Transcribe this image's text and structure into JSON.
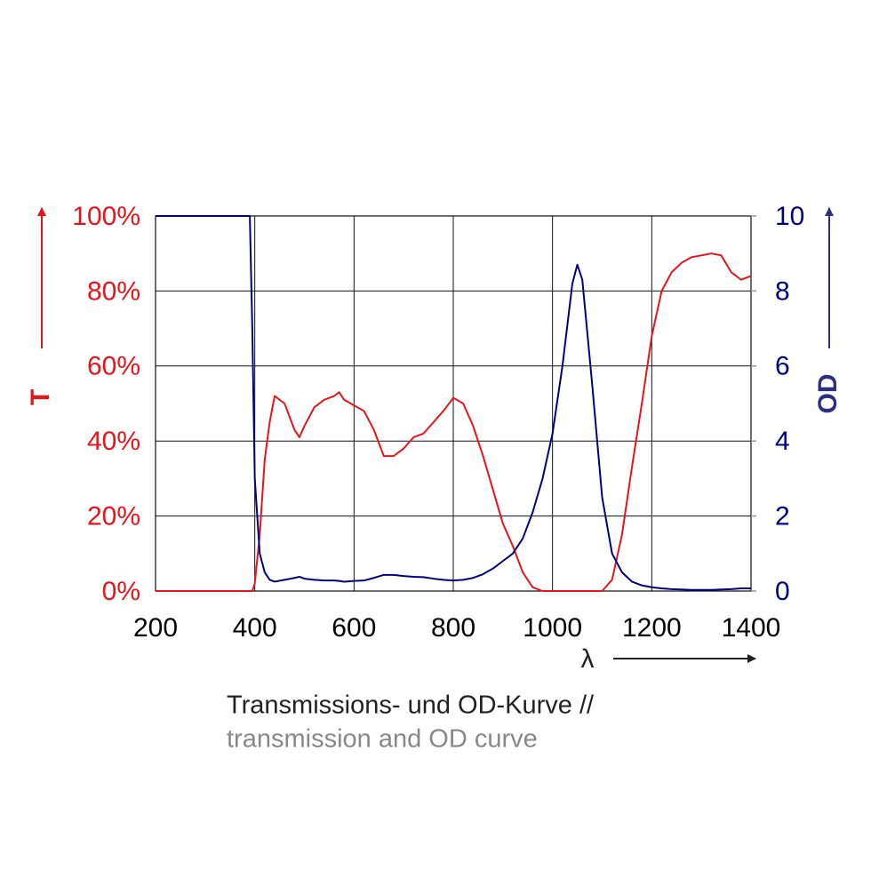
{
  "chart_data": {
    "type": "line",
    "y_label": "T",
    "y2_label": "OD",
    "x_label": "λ",
    "caption": [
      "Transmissions- und OD-Kurve //",
      "transmission and OD curve"
    ],
    "xlim": [
      200,
      1400
    ],
    "xticks": [
      200,
      400,
      600,
      800,
      1000,
      1200,
      1400
    ],
    "ylim": [
      0,
      100
    ],
    "yticks": [
      {
        "value": 0,
        "label": "0%"
      },
      {
        "value": 20,
        "label": "20%"
      },
      {
        "value": 40,
        "label": "40%"
      },
      {
        "value": 60,
        "label": "60%"
      },
      {
        "value": 80,
        "label": "80%"
      },
      {
        "value": 100,
        "label": "100%"
      }
    ],
    "y2lim": [
      0,
      10
    ],
    "y2ticks": [
      0,
      2,
      4,
      6,
      8,
      10
    ],
    "grid": true,
    "x": [
      200,
      300,
      380,
      390,
      395,
      400,
      410,
      420,
      430,
      440,
      460,
      480,
      490,
      500,
      520,
      540,
      560,
      570,
      580,
      600,
      620,
      640,
      660,
      680,
      700,
      720,
      740,
      760,
      780,
      800,
      820,
      840,
      860,
      880,
      900,
      920,
      940,
      960,
      980,
      1000,
      1020,
      1040,
      1050,
      1060,
      1080,
      1100,
      1120,
      1140,
      1160,
      1180,
      1200,
      1220,
      1240,
      1260,
      1280,
      1300,
      1320,
      1340,
      1360,
      1380,
      1400
    ],
    "series": [
      {
        "color": "#e8141b",
        "axis": "y",
        "values": [
          0,
          0,
          0,
          0,
          0,
          2,
          15,
          35,
          45,
          52,
          50,
          43,
          41,
          44,
          49,
          51,
          52,
          53,
          51,
          49.5,
          48,
          43,
          36,
          36,
          38,
          41,
          42,
          45,
          48,
          51.5,
          50,
          44,
          36,
          27,
          18,
          12,
          5,
          1,
          0,
          0,
          0,
          0,
          0,
          0,
          0,
          0,
          3,
          15,
          33,
          50,
          68,
          80,
          85,
          87.5,
          89,
          89.5,
          90,
          89.5,
          85,
          83,
          84
        ]
      },
      {
        "color": "#000080",
        "axis": "y2",
        "values": [
          10,
          10,
          10,
          10,
          7,
          3,
          1,
          0.5,
          0.3,
          0.25,
          0.3,
          0.35,
          0.38,
          0.33,
          0.3,
          0.28,
          0.28,
          0.27,
          0.25,
          0.27,
          0.28,
          0.35,
          0.43,
          0.43,
          0.4,
          0.38,
          0.37,
          0.33,
          0.3,
          0.28,
          0.3,
          0.35,
          0.45,
          0.6,
          0.8,
          1.0,
          1.4,
          2.1,
          3.0,
          4.2,
          6.0,
          8.2,
          8.7,
          8.3,
          5.5,
          2.5,
          1.0,
          0.5,
          0.25,
          0.15,
          0.1,
          0.07,
          0.05,
          0.04,
          0.03,
          0.03,
          0.03,
          0.04,
          0.05,
          0.07,
          0.07
        ]
      }
    ]
  }
}
